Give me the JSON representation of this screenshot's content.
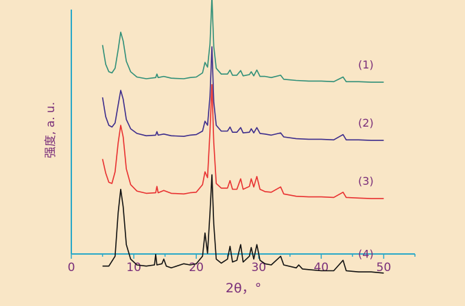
{
  "chart_data": {
    "type": "line",
    "xlabel": "2θ，°",
    "ylabel": "强度, a. u.",
    "xlim": [
      0,
      55
    ],
    "xticks": [
      0,
      10,
      20,
      30,
      40,
      50
    ],
    "yaxis_ticks_shown": false,
    "grid": false,
    "legend": "inline labels at right end of each curve",
    "background_color": "#f9e6c6",
    "axis_color": "#2aa8c8",
    "label_color": "#7a2f7a",
    "series": [
      {
        "name": "(1)",
        "color": "#2f8f78",
        "baseline": 1.0,
        "points": [
          [
            5,
            1.58
          ],
          [
            5.5,
            1.25
          ],
          [
            6,
            1.12
          ],
          [
            6.5,
            1.1
          ],
          [
            7,
            1.18
          ],
          [
            7.5,
            1.5
          ],
          [
            7.9,
            1.8
          ],
          [
            8.3,
            1.65
          ],
          [
            8.8,
            1.3
          ],
          [
            9.5,
            1.12
          ],
          [
            10.5,
            1.03
          ],
          [
            12,
            1.0
          ],
          [
            13.5,
            1.02
          ],
          [
            13.7,
            1.08
          ],
          [
            13.9,
            1.02
          ],
          [
            14.8,
            1.04
          ],
          [
            16,
            1.01
          ],
          [
            18,
            1.0
          ],
          [
            19,
            1.02
          ],
          [
            20,
            1.03
          ],
          [
            21,
            1.1
          ],
          [
            21.4,
            1.28
          ],
          [
            21.8,
            1.2
          ],
          [
            22.2,
            1.6
          ],
          [
            22.5,
            2.4
          ],
          [
            22.8,
            1.55
          ],
          [
            23.2,
            1.18
          ],
          [
            24,
            1.08
          ],
          [
            25,
            1.08
          ],
          [
            25.4,
            1.15
          ],
          [
            25.8,
            1.06
          ],
          [
            26.5,
            1.06
          ],
          [
            27.1,
            1.14
          ],
          [
            27.5,
            1.05
          ],
          [
            28.5,
            1.07
          ],
          [
            28.8,
            1.12
          ],
          [
            29.2,
            1.05
          ],
          [
            29.7,
            1.15
          ],
          [
            30.2,
            1.04
          ],
          [
            31,
            1.04
          ],
          [
            32,
            1.02
          ],
          [
            33.5,
            1.06
          ],
          [
            34,
            0.99
          ],
          [
            36,
            0.97
          ],
          [
            38,
            0.96
          ],
          [
            40,
            0.96
          ],
          [
            42,
            0.95
          ],
          [
            43.5,
            1.03
          ],
          [
            44,
            0.95
          ],
          [
            46,
            0.95
          ],
          [
            48,
            0.94
          ],
          [
            50,
            0.94
          ]
        ]
      },
      {
        "name": "(2)",
        "color": "#3c2c8c",
        "baseline": 0.0,
        "points": [
          [
            5,
            0.68
          ],
          [
            5.5,
            0.35
          ],
          [
            6,
            0.2
          ],
          [
            6.5,
            0.17
          ],
          [
            7,
            0.24
          ],
          [
            7.5,
            0.55
          ],
          [
            7.9,
            0.8
          ],
          [
            8.3,
            0.65
          ],
          [
            8.8,
            0.3
          ],
          [
            9.5,
            0.14
          ],
          [
            10.5,
            0.06
          ],
          [
            12,
            0.02
          ],
          [
            13.5,
            0.03
          ],
          [
            13.7,
            0.09
          ],
          [
            13.9,
            0.03
          ],
          [
            14.8,
            0.05
          ],
          [
            16,
            0.02
          ],
          [
            18,
            0.01
          ],
          [
            19,
            0.03
          ],
          [
            20,
            0.04
          ],
          [
            21,
            0.1
          ],
          [
            21.4,
            0.27
          ],
          [
            21.8,
            0.2
          ],
          [
            22.2,
            0.7
          ],
          [
            22.5,
            1.55
          ],
          [
            22.8,
            0.6
          ],
          [
            23.2,
            0.2
          ],
          [
            24,
            0.1
          ],
          [
            25,
            0.1
          ],
          [
            25.4,
            0.17
          ],
          [
            25.8,
            0.08
          ],
          [
            26.5,
            0.08
          ],
          [
            27.1,
            0.16
          ],
          [
            27.5,
            0.07
          ],
          [
            28.5,
            0.08
          ],
          [
            28.8,
            0.14
          ],
          [
            29.2,
            0.07
          ],
          [
            29.7,
            0.16
          ],
          [
            30.2,
            0.06
          ],
          [
            31,
            0.05
          ],
          [
            32,
            0.03
          ],
          [
            33.5,
            0.07
          ],
          [
            34,
            0.0
          ],
          [
            36,
            -0.03
          ],
          [
            38,
            -0.04
          ],
          [
            40,
            -0.04
          ],
          [
            42,
            -0.05
          ],
          [
            43.5,
            0.04
          ],
          [
            44,
            -0.05
          ],
          [
            46,
            -0.05
          ],
          [
            48,
            -0.06
          ],
          [
            50,
            -0.06
          ]
        ]
      },
      {
        "name": "(3)",
        "color": "#e83030",
        "baseline": -1.0,
        "points": [
          [
            5,
            -0.38
          ],
          [
            5.5,
            -0.62
          ],
          [
            6,
            -0.78
          ],
          [
            6.5,
            -0.8
          ],
          [
            7,
            -0.6
          ],
          [
            7.5,
            -0.1
          ],
          [
            7.9,
            0.2
          ],
          [
            8.3,
            0.0
          ],
          [
            8.8,
            -0.55
          ],
          [
            9.5,
            -0.82
          ],
          [
            10.5,
            -0.93
          ],
          [
            12,
            -0.97
          ],
          [
            13.5,
            -0.96
          ],
          [
            13.7,
            -0.85
          ],
          [
            13.9,
            -0.96
          ],
          [
            14.8,
            -0.92
          ],
          [
            16,
            -0.97
          ],
          [
            18,
            -0.98
          ],
          [
            19,
            -0.96
          ],
          [
            20,
            -0.95
          ],
          [
            21,
            -0.82
          ],
          [
            21.4,
            -0.6
          ],
          [
            21.8,
            -0.7
          ],
          [
            22.2,
            0.1
          ],
          [
            22.5,
            0.9
          ],
          [
            22.8,
            -0.1
          ],
          [
            23.2,
            -0.8
          ],
          [
            24,
            -0.88
          ],
          [
            25,
            -0.88
          ],
          [
            25.4,
            -0.75
          ],
          [
            25.8,
            -0.9
          ],
          [
            26.5,
            -0.9
          ],
          [
            27.1,
            -0.72
          ],
          [
            27.5,
            -0.9
          ],
          [
            28.5,
            -0.85
          ],
          [
            28.8,
            -0.72
          ],
          [
            29.2,
            -0.86
          ],
          [
            29.7,
            -0.68
          ],
          [
            30.2,
            -0.9
          ],
          [
            31,
            -0.94
          ],
          [
            32,
            -0.95
          ],
          [
            33.5,
            -0.86
          ],
          [
            34,
            -0.98
          ],
          [
            36,
            -1.02
          ],
          [
            38,
            -1.03
          ],
          [
            40,
            -1.03
          ],
          [
            42,
            -1.04
          ],
          [
            43.5,
            -0.95
          ],
          [
            44,
            -1.04
          ],
          [
            46,
            -1.05
          ],
          [
            48,
            -1.06
          ],
          [
            50,
            -1.06
          ]
        ]
      },
      {
        "name": "(4)",
        "color": "#111111",
        "baseline": -2.25,
        "points": [
          [
            5,
            -2.22
          ],
          [
            6,
            -2.22
          ],
          [
            7,
            -2.05
          ],
          [
            7.5,
            -1.3
          ],
          [
            7.9,
            -0.9
          ],
          [
            8.3,
            -1.2
          ],
          [
            8.8,
            -1.85
          ],
          [
            9.5,
            -2.1
          ],
          [
            10.5,
            -2.2
          ],
          [
            12,
            -2.22
          ],
          [
            13.3,
            -2.2
          ],
          [
            13.5,
            -2.02
          ],
          [
            13.7,
            -2.2
          ],
          [
            14.5,
            -2.18
          ],
          [
            14.8,
            -2.1
          ],
          [
            15.2,
            -2.22
          ],
          [
            16,
            -2.25
          ],
          [
            18,
            -2.18
          ],
          [
            19,
            -2.2
          ],
          [
            20,
            -2.18
          ],
          [
            21,
            -2.05
          ],
          [
            21.4,
            -1.65
          ],
          [
            21.8,
            -2.0
          ],
          [
            22.2,
            -1.3
          ],
          [
            22.5,
            -0.65
          ],
          [
            22.8,
            -1.5
          ],
          [
            23.2,
            -2.1
          ],
          [
            24,
            -2.17
          ],
          [
            25,
            -2.1
          ],
          [
            25.4,
            -1.88
          ],
          [
            25.8,
            -2.15
          ],
          [
            26.5,
            -2.12
          ],
          [
            27.1,
            -1.85
          ],
          [
            27.5,
            -2.15
          ],
          [
            28.5,
            -2.05
          ],
          [
            28.8,
            -1.9
          ],
          [
            29.2,
            -2.1
          ],
          [
            29.7,
            -1.85
          ],
          [
            30.2,
            -2.12
          ],
          [
            31,
            -2.18
          ],
          [
            32,
            -2.2
          ],
          [
            33.5,
            -2.05
          ],
          [
            34,
            -2.2
          ],
          [
            36,
            -2.25
          ],
          [
            36.4,
            -2.2
          ],
          [
            37,
            -2.27
          ],
          [
            38,
            -2.28
          ],
          [
            40,
            -2.3
          ],
          [
            42,
            -2.3
          ],
          [
            43.5,
            -2.12
          ],
          [
            44,
            -2.3
          ],
          [
            46,
            -2.32
          ],
          [
            48,
            -2.32
          ],
          [
            50,
            -2.34
          ]
        ]
      }
    ]
  }
}
